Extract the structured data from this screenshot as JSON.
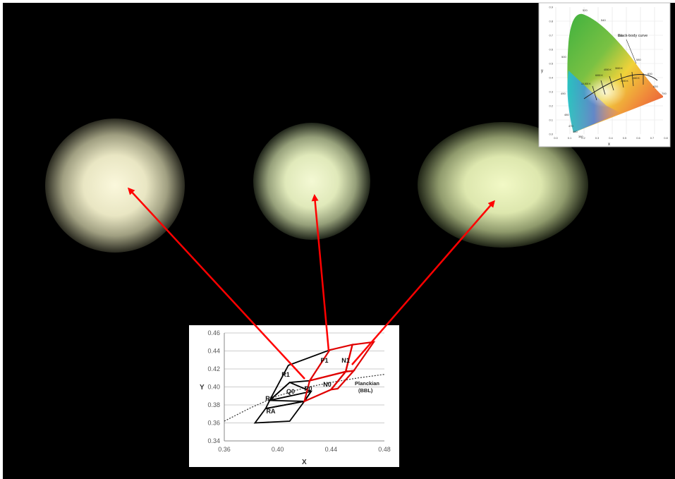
{
  "colors": {
    "background": "#000000",
    "arrow": "#ff0000",
    "bin_black": "#000000",
    "bin_red": "#e00000",
    "led_glow": "#f4f7d2"
  },
  "inset_small": {
    "curve_label": "Black-body curve",
    "y_axis_letter": "y",
    "x_axis_letter": "x",
    "y_ticks": [
      "0.9",
      "0.8",
      "0.7",
      "0.6",
      "0.5",
      "0.4",
      "0.3",
      "0.2",
      "0.1",
      "0.0"
    ],
    "x_ticks": [
      "0.0",
      "0.1",
      "0.2",
      "0.3",
      "0.4",
      "0.5",
      "0.6",
      "0.7",
      "0.8"
    ],
    "wavelengths": [
      "520",
      "540",
      "560",
      "580",
      "600",
      "620",
      "700",
      "500",
      "490",
      "480",
      "470",
      "460",
      "380"
    ],
    "temperatures": [
      "10,000 K",
      "6000 K",
      "4000 K",
      "3000 K",
      "2000 K",
      "1500 K"
    ]
  },
  "chart": {
    "x_label": "X",
    "y_label": "Y",
    "x_ticks": [
      "0.36",
      "0.40",
      "0.44",
      "0.48"
    ],
    "y_ticks": [
      "0.46",
      "0.44",
      "0.42",
      "0.40",
      "0.38",
      "0.36",
      "0.34"
    ],
    "planckian_label_line1": "Planckian",
    "planckian_label_line2": "(BBL)",
    "bins": [
      "R1",
      "P1",
      "N1",
      "R0",
      "Q0",
      "P0",
      "N0",
      "RA"
    ]
  },
  "chart_data": {
    "type": "scatter",
    "xlabel": "X",
    "ylabel": "Y",
    "xlim": [
      0.36,
      0.48
    ],
    "ylim": [
      0.34,
      0.46
    ],
    "planckian": [
      [
        0.36,
        0.362
      ],
      [
        0.38,
        0.377
      ],
      [
        0.4,
        0.39
      ],
      [
        0.42,
        0.399
      ],
      [
        0.44,
        0.405
      ],
      [
        0.46,
        0.41
      ],
      [
        0.48,
        0.414
      ]
    ],
    "bins": [
      {
        "name": "RA",
        "corners": [
          [
            0.383,
            0.36
          ],
          [
            0.409,
            0.362
          ],
          [
            0.42,
            0.384
          ],
          [
            0.391,
            0.376
          ]
        ]
      },
      {
        "name": "R0",
        "corners": [
          [
            0.391,
            0.376
          ],
          [
            0.42,
            0.384
          ],
          [
            0.425,
            0.395
          ],
          [
            0.394,
            0.385
          ]
        ]
      },
      {
        "name": "Q0",
        "corners": [
          [
            0.394,
            0.385
          ],
          [
            0.42,
            0.384
          ],
          [
            0.425,
            0.395
          ],
          [
            0.409,
            0.405
          ]
        ]
      },
      {
        "name": "R1",
        "corners": [
          [
            0.394,
            0.385
          ],
          [
            0.409,
            0.405
          ],
          [
            0.424,
            0.407
          ],
          [
            0.439,
            0.441
          ],
          [
            0.408,
            0.424
          ]
        ]
      },
      {
        "name": "P0",
        "corners": [
          [
            0.42,
            0.384
          ],
          [
            0.44,
            0.397
          ],
          [
            0.451,
            0.417
          ],
          [
            0.424,
            0.407
          ]
        ]
      },
      {
        "name": "P1",
        "corners": [
          [
            0.424,
            0.407
          ],
          [
            0.451,
            0.417
          ],
          [
            0.456,
            0.447
          ],
          [
            0.439,
            0.441
          ]
        ]
      },
      {
        "name": "N0",
        "corners": [
          [
            0.44,
            0.397
          ],
          [
            0.445,
            0.398
          ],
          [
            0.457,
            0.418
          ],
          [
            0.451,
            0.417
          ]
        ]
      },
      {
        "name": "N1",
        "corners": [
          [
            0.451,
            0.417
          ],
          [
            0.457,
            0.418
          ],
          [
            0.472,
            0.45
          ],
          [
            0.456,
            0.447
          ]
        ]
      }
    ]
  }
}
